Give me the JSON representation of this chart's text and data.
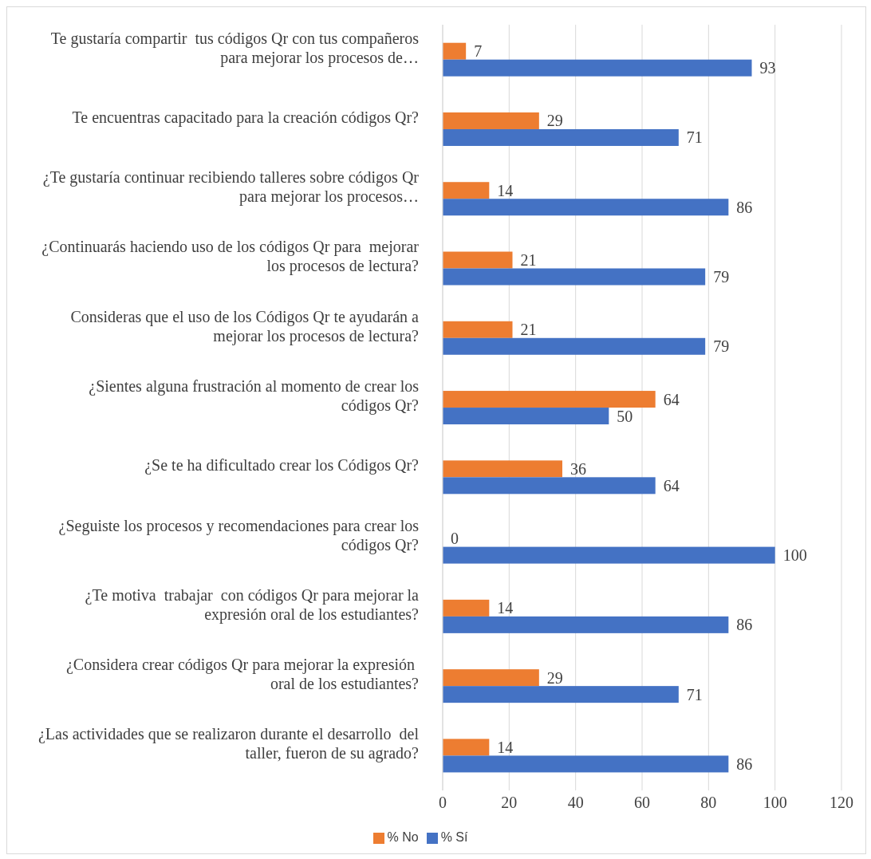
{
  "chart_data": {
    "type": "bar",
    "orientation": "horizontal",
    "categories": [
      "Te gustaría compartir  tus códigos Qr con tus compañeros para mejorar los procesos de…",
      "Te encuentras capacitado para la creación códigos Qr?",
      "¿Te gustaría continuar recibiendo talleres sobre códigos Qr para mejorar los procesos…",
      "¿Continuarás haciendo uso de los códigos Qr para  mejorar los procesos de lectura?",
      "Consideras que el uso de los Códigos Qr te ayudarán a mejorar los procesos de lectura?",
      "¿Sientes alguna frustración al momento de crear los códigos Qr?",
      "¿Se te ha dificultado crear los Códigos Qr?",
      "¿Seguiste los procesos y recomendaciones para crear los códigos Qr?",
      "¿Te motiva  trabajar  con códigos Qr para mejorar la expresión oral de los estudiantes?",
      "¿Considera crear códigos Qr para mejorar la expresión  oral de los estudiantes?",
      "¿Las actividades que se realizaron durante el desarrollo  del taller, fueron de su agrado?"
    ],
    "series": [
      {
        "name": "% No",
        "color": "#ed7d31",
        "values": [
          7,
          29,
          14,
          21,
          21,
          64,
          36,
          0,
          14,
          29,
          14
        ]
      },
      {
        "name": "% Sí",
        "color": "#4472c4",
        "values": [
          93,
          71,
          86,
          79,
          79,
          50,
          64,
          100,
          86,
          71,
          86
        ]
      }
    ],
    "xlim": [
      0,
      120
    ],
    "xticks": [
      0,
      20,
      40,
      60,
      80,
      100,
      120
    ],
    "grid": "x",
    "legend": "bottom",
    "data_labels": true
  }
}
